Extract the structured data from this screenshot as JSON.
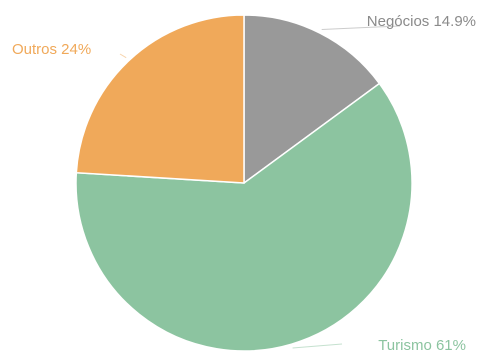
{
  "chart_data": {
    "type": "pie",
    "slices": [
      {
        "label": "Negócios",
        "value": 14.9,
        "display": "Negócios 14.9%",
        "color": "#999999"
      },
      {
        "label": "Turismo",
        "value": 61,
        "display": "Turismo 61%",
        "color": "#8cc4a0"
      },
      {
        "label": "Outros",
        "value": 24,
        "display": "Outros 24%",
        "color": "#f0a95a"
      }
    ],
    "start_angle_deg": 0,
    "direction": "clockwise",
    "legend": "none",
    "labels": "outside"
  }
}
